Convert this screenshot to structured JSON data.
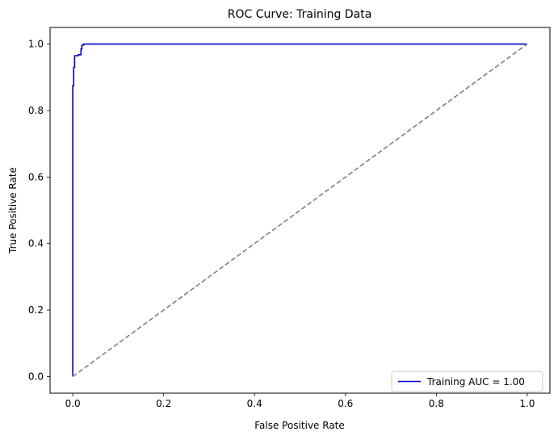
{
  "chart_data": {
    "type": "line",
    "title": "ROC Curve: Training Data",
    "xlabel": "False Positive Rate",
    "ylabel": "True Positive Rate",
    "xlim": [
      -0.05,
      1.05
    ],
    "ylim": [
      -0.05,
      1.05
    ],
    "xticks": [
      0.0,
      0.2,
      0.4,
      0.6,
      0.8,
      1.0
    ],
    "xtick_labels": [
      "0.0",
      "0.2",
      "0.4",
      "0.6",
      "0.8",
      "1.0"
    ],
    "yticks": [
      0.0,
      0.2,
      0.4,
      0.6,
      0.8,
      1.0
    ],
    "ytick_labels": [
      "0.0",
      "0.2",
      "0.4",
      "0.6",
      "0.8",
      "1.0"
    ],
    "grid": false,
    "legend_position": "lower right",
    "series": [
      {
        "name": "Training AUC = 1.00",
        "color": "#0000cd",
        "style": "solid",
        "x": [
          0.0,
          0.0,
          0.0,
          0.0,
          0.002,
          0.002,
          0.004,
          0.004,
          0.008,
          0.008,
          0.012,
          0.012,
          0.018,
          0.018,
          0.02,
          0.02,
          0.024,
          0.024,
          1.0
        ],
        "y": [
          0.0,
          0.65,
          0.65,
          0.875,
          0.875,
          0.93,
          0.93,
          0.965,
          0.965,
          0.965,
          0.965,
          0.968,
          0.968,
          0.985,
          0.985,
          0.997,
          0.997,
          1.0,
          1.0
        ]
      },
      {
        "name": "",
        "color": "#808080",
        "style": "dashed",
        "x": [
          0.0,
          1.0
        ],
        "y": [
          0.0,
          1.0
        ]
      }
    ]
  }
}
